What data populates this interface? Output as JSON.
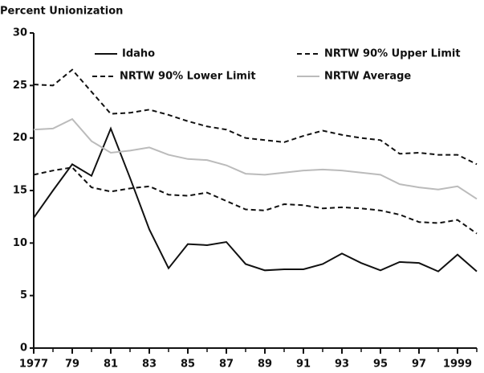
{
  "chart_data": {
    "type": "line",
    "title": "Percent Unionization",
    "x": [
      1977,
      1978,
      1979,
      1980,
      1981,
      1982,
      1983,
      1984,
      1985,
      1986,
      1987,
      1988,
      1989,
      1990,
      1991,
      1992,
      1993,
      1994,
      1995,
      1996,
      1997,
      1998,
      1999,
      2000
    ],
    "xlim": [
      1977,
      2000
    ],
    "xticks": [
      1977,
      {
        "value": 1979,
        "label": "79"
      },
      {
        "value": 1981,
        "label": "81"
      },
      {
        "value": 1983,
        "label": "83"
      },
      {
        "value": 1985,
        "label": "85"
      },
      {
        "value": 1987,
        "label": "87"
      },
      {
        "value": 1989,
        "label": "89"
      },
      {
        "value": 1991,
        "label": "91"
      },
      {
        "value": 1993,
        "label": "93"
      },
      {
        "value": 1995,
        "label": "95"
      },
      {
        "value": 1997,
        "label": "97"
      },
      1999
    ],
    "ylim": [
      0,
      30
    ],
    "yticks": [
      0,
      5,
      10,
      15,
      20,
      25,
      30
    ],
    "series": [
      {
        "name": "Idaho",
        "color": "#111111",
        "dashed": false,
        "values": [
          12.4,
          15.0,
          17.5,
          16.4,
          20.9,
          16.2,
          11.3,
          7.6,
          9.9,
          9.8,
          10.1,
          8.0,
          7.4,
          7.5,
          7.5,
          8.0,
          9.0,
          8.1,
          7.4,
          8.2,
          8.1,
          7.3,
          8.9,
          7.3
        ]
      },
      {
        "name": "NRTW 90% Upper Limit",
        "color": "#111111",
        "dashed": true,
        "values": [
          25.1,
          25.0,
          26.5,
          24.4,
          22.3,
          22.4,
          22.7,
          22.2,
          21.6,
          21.1,
          20.8,
          20.0,
          19.8,
          19.6,
          20.2,
          20.7,
          20.3,
          20.0,
          19.8,
          18.5,
          18.6,
          18.4,
          18.4,
          17.5
        ]
      },
      {
        "name": "NRTW 90% Lower Limit",
        "color": "#111111",
        "dashed": true,
        "values": [
          16.5,
          16.9,
          17.2,
          15.3,
          14.9,
          15.2,
          15.4,
          14.6,
          14.5,
          14.8,
          14.0,
          13.2,
          13.1,
          13.7,
          13.6,
          13.3,
          13.4,
          13.3,
          13.1,
          12.7,
          12.0,
          11.9,
          12.2,
          10.9
        ]
      },
      {
        "name": "NRTW Average",
        "color": "#bbbbbb",
        "dashed": false,
        "values": [
          20.8,
          20.9,
          21.8,
          19.7,
          18.6,
          18.8,
          19.1,
          18.4,
          18.0,
          17.9,
          17.4,
          16.6,
          16.5,
          16.7,
          16.9,
          17.0,
          16.9,
          16.7,
          16.5,
          15.6,
          15.3,
          15.1,
          15.4,
          14.2
        ]
      }
    ]
  }
}
